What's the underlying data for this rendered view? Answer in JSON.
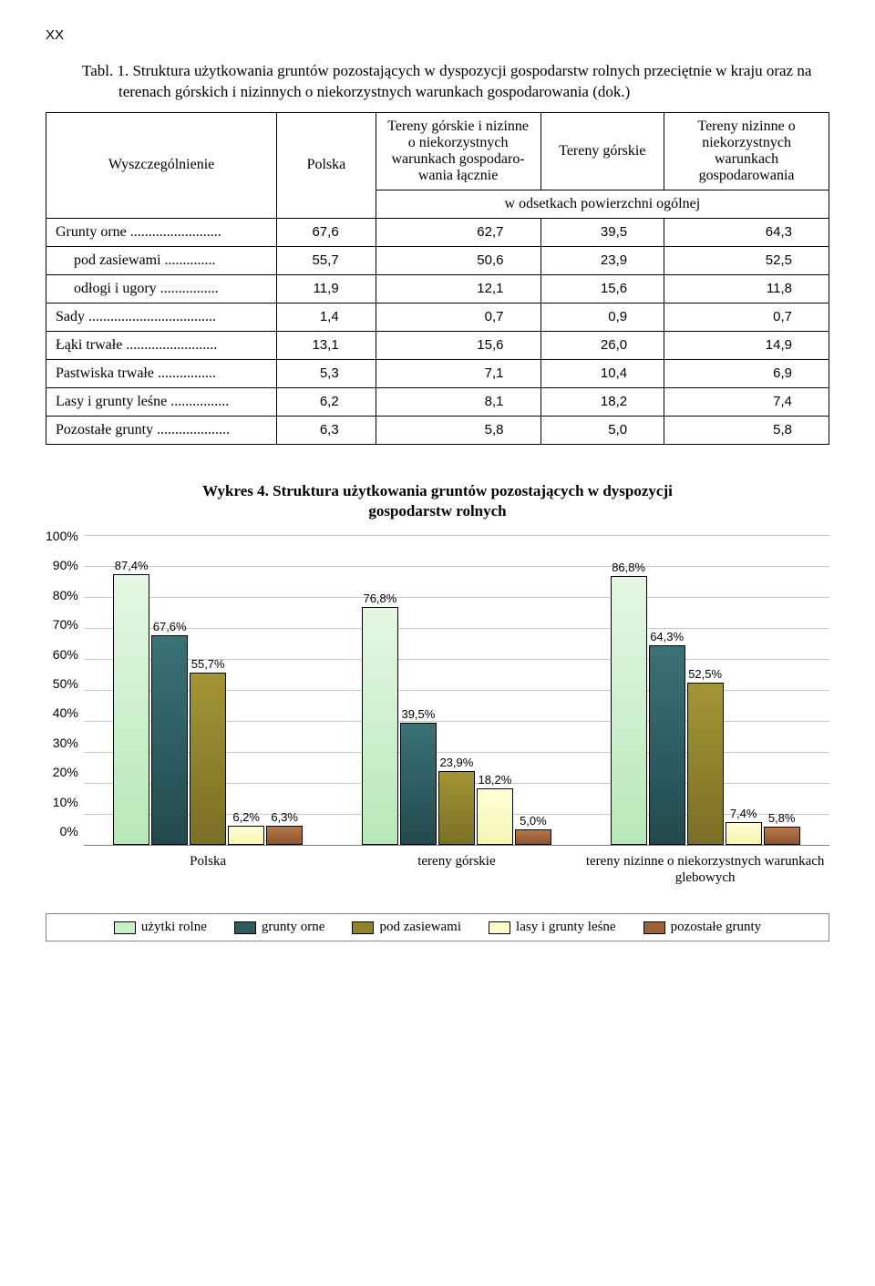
{
  "page_marker": "XX",
  "table_caption": "Tabl. 1. Struktura użytkowania gruntów pozostających w dyspozycji gospodarstw rolnych przeciętnie w kraju oraz na terenach górskich i nizinnych o niekorzystnych warunkach gospodarowania (dok.)",
  "table": {
    "head_col0": "Wyszczególnienie",
    "head_col1": "Polska",
    "head_col2": "Tereny górskie i nizinne o niekorzy­stnych warunkach gospodaro­wania łącznie",
    "head_col3": "Tereny górskie",
    "head_col4": "Tereny nizinne o niekorzy­stnych warunkach gospodarowa­nia",
    "subhead": "w odsetkach powierzchni ogólnej",
    "rows": [
      {
        "label": "Grunty orne .........................",
        "v": [
          "67,6",
          "62,7",
          "39,5",
          "64,3"
        ],
        "indent": 0
      },
      {
        "label": "pod  zasiewami ..............",
        "v": [
          "55,7",
          "50,6",
          "23,9",
          "52,5"
        ],
        "indent": 1
      },
      {
        "label": "odłogi i ugory ................",
        "v": [
          "11,9",
          "12,1",
          "15,6",
          "11,8"
        ],
        "indent": 1
      },
      {
        "label": "Sady ...................................",
        "v": [
          "1,4",
          "0,7",
          "0,9",
          "0,7"
        ],
        "indent": 0
      },
      {
        "label": "Łąki trwałe .........................",
        "v": [
          "13,1",
          "15,6",
          "26,0",
          "14,9"
        ],
        "indent": 0
      },
      {
        "label": "Pastwiska trwałe ................",
        "v": [
          "5,3",
          "7,1",
          "10,4",
          "6,9"
        ],
        "indent": 0
      },
      {
        "label": "Lasy i grunty leśne ................",
        "v": [
          "6,2",
          "8,1",
          "18,2",
          "7,4"
        ],
        "indent": 0
      },
      {
        "label": "Pozostałe grunty ....................",
        "v": [
          "6,3",
          "5,8",
          "5,0",
          "5,8"
        ],
        "indent": 0
      }
    ]
  },
  "chart": {
    "title": "Wykres 4. Struktura użytkowania gruntów pozostających w dyspozycji gospodarstw rolnych",
    "yticks": [
      "100%",
      "90%",
      "80%",
      "70%",
      "60%",
      "50%",
      "40%",
      "30%",
      "20%",
      "10%",
      "0%"
    ],
    "ymax": 100,
    "series_colors": [
      "#c8f0c8",
      "#2f5a5e",
      "#8f832e",
      "#fbfbc8",
      "#9c6238"
    ],
    "categories": [
      "Polska",
      "tereny górskie",
      "tereny nizinne o niekorzystnych warunkach glebowych"
    ],
    "legend": [
      "użytki rolne",
      "grunty orne",
      "pod zasiewami",
      "lasy i grunty leśne",
      "pozostałe grunty"
    ],
    "groups": [
      {
        "bars": [
          {
            "label": "87,4%",
            "v": 87.4,
            "c": 0
          },
          {
            "label": "67,6%",
            "v": 67.6,
            "c": 1
          },
          {
            "label": "55,7%",
            "v": 55.7,
            "c": 2
          },
          {
            "label": "6,2%",
            "v": 6.2,
            "c": 3
          },
          {
            "label": "6,3%",
            "v": 6.3,
            "c": 4
          }
        ]
      },
      {
        "bars": [
          {
            "label": "76,8%",
            "v": 76.8,
            "c": 0
          },
          {
            "label": "39,5%",
            "v": 39.5,
            "c": 1
          },
          {
            "label": "23,9%",
            "v": 23.9,
            "c": 2
          },
          {
            "label": "18,2%",
            "v": 18.2,
            "c": 3
          },
          {
            "label": "5,0%",
            "v": 5.0,
            "c": 4
          }
        ]
      },
      {
        "bars": [
          {
            "label": "86,8%",
            "v": 86.8,
            "c": 0
          },
          {
            "label": "64,3%",
            "v": 64.3,
            "c": 1
          },
          {
            "label": "52,5%",
            "v": 52.5,
            "c": 2
          },
          {
            "label": "7,4%",
            "v": 7.4,
            "c": 3
          },
          {
            "label": "5,8%",
            "v": 5.8,
            "c": 4
          }
        ]
      }
    ]
  }
}
